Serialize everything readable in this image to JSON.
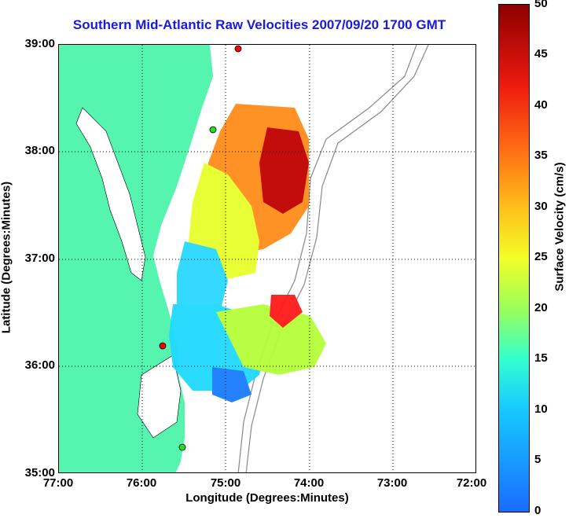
{
  "title": "Southern Mid-Atlantic Raw Velocities 2007/09/20 1700 GMT",
  "axes": {
    "xlabel": "Longitude (Degrees:Minutes)",
    "ylabel": "Latitude (Degrees:Minutes)",
    "xticks": [
      "77:00",
      "76:00",
      "75:00",
      "74:00",
      "73:00",
      "72:00"
    ],
    "yticks": [
      "39:00",
      "38:00",
      "37:00",
      "36:00",
      "35:00"
    ]
  },
  "colorbar": {
    "label": "Surface Velocity (cm/s)",
    "ticks": [
      "50",
      "45",
      "40",
      "35",
      "30",
      "25",
      "20",
      "15",
      "10",
      "5",
      "0"
    ]
  },
  "colors": {
    "land": "#55f5b0",
    "title": "#1a1adf",
    "station": "#ff0000",
    "station_alt": "#22dd22"
  }
}
